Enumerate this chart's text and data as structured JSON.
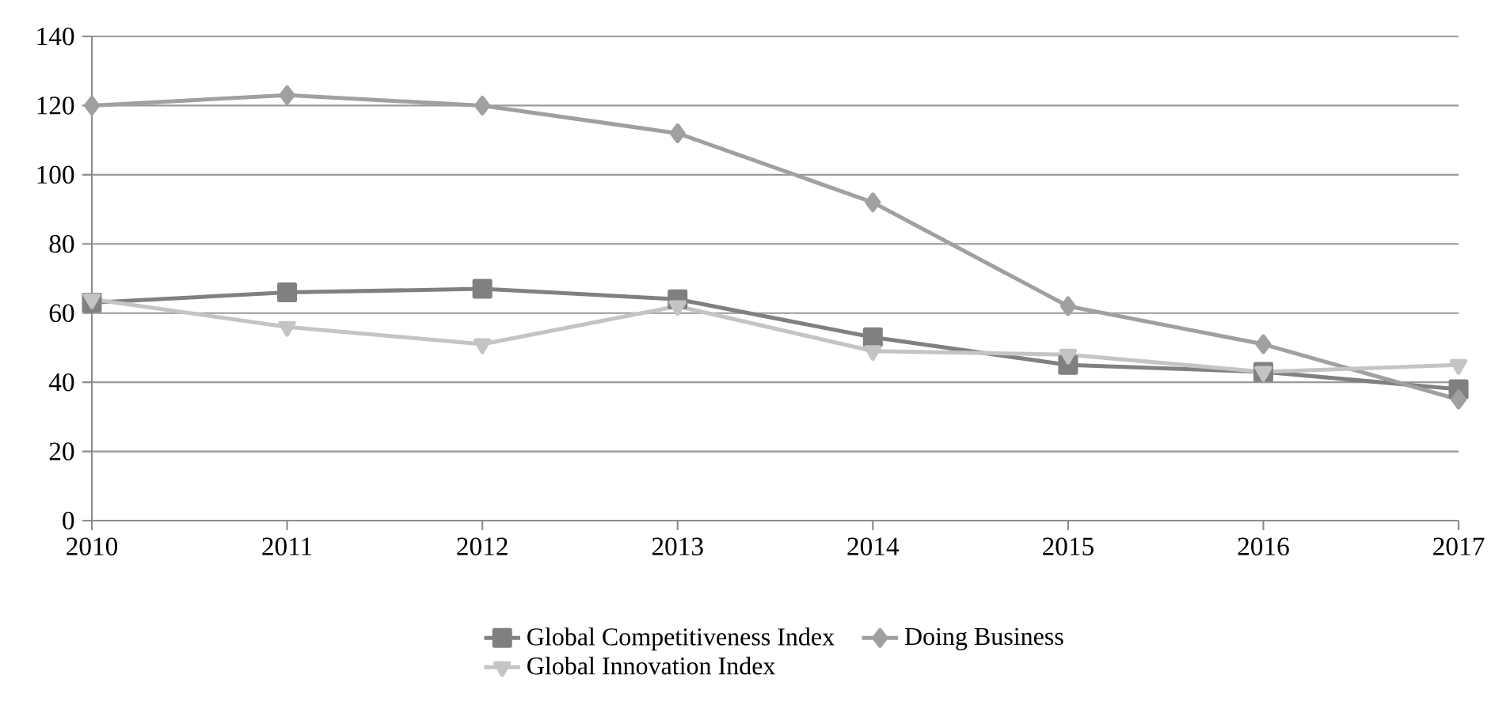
{
  "chart_data": {
    "type": "line",
    "x": [
      2010,
      2011,
      2012,
      2013,
      2014,
      2015,
      2016,
      2017
    ],
    "series": [
      {
        "name": "Global Competitiveness Index",
        "color": "#808080",
        "marker": "square",
        "values": [
          63,
          66,
          67,
          64,
          53,
          45,
          43,
          38
        ]
      },
      {
        "name": "Doing Business",
        "color": "#a0a0a0",
        "marker": "diamond",
        "values": [
          120,
          123,
          120,
          112,
          92,
          62,
          51,
          35
        ]
      },
      {
        "name": "Global Innovation Index",
        "color": "#c4c4c4",
        "marker": "triangle",
        "values": [
          64,
          56,
          51,
          62,
          49,
          48,
          43,
          45
        ]
      }
    ],
    "xlim": [
      2010,
      2017
    ],
    "xticks": [
      2010,
      2011,
      2012,
      2013,
      2014,
      2015,
      2016,
      2017
    ],
    "ylim": [
      0,
      140
    ],
    "yticks": [
      0,
      20,
      40,
      60,
      80,
      100,
      120,
      140
    ],
    "grid": "y",
    "legend": "bottom",
    "line_style": "solid"
  }
}
